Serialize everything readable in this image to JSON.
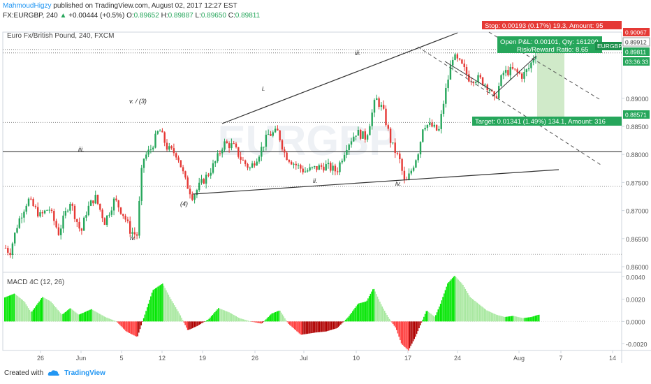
{
  "header": {
    "author": "MahmoudHigzy",
    "published_text": " published on TradingView.com, August 02, 2017 12:27 EST",
    "symbol": "FX:EURGBP, 240",
    "arrow": "▲",
    "change": "+0.00444 (+0.5%)",
    "last": "0.89811",
    "o_label": "O:",
    "o_val": "0.89652",
    "h_label": "H:",
    "h_val": "0.89887",
    "l_label": "L:",
    "l_val": "0.89650",
    "c_label": "C:",
    "c_val": "0.89811"
  },
  "pane_title": "Euro Fx/British Pound, 240, FXCM",
  "watermark": "EURGBP",
  "position_box": {
    "stop_text": "Stop: 0.00193 (0.17%) 19.3, Amount: 95",
    "pnl_text": "Open P&L: 0.00101, Qty: 161200",
    "rr_text": "Risk/Reward Ratio: 8.65",
    "target_text": "Target: 0.01341 (1.49%) 134.1, Amount: 316",
    "symbol_tag": "EURGBP"
  },
  "price_tags": {
    "stop": "0.90067",
    "entry": "0.89912",
    "current": "0.89811",
    "countdown": "03:36:33",
    "target": "0.88571"
  },
  "wave_labels": [
    "v. / (3)",
    "i.",
    "iii.",
    "iii.",
    "(4)",
    "iv.",
    "ii.",
    "iv."
  ],
  "macd_title": "MACD 4C (12, 26)",
  "footer": {
    "created_with": "Created with",
    "brand": "TradingView"
  },
  "colors": {
    "bull": "#26a65b",
    "bear": "#e53935",
    "macd_pos_hi": "#00e600",
    "macd_pos_lo": "#a8e8a0",
    "macd_neg_hi": "#ff3b3b",
    "macd_neg_lo": "#b00000",
    "target_zone": "#c8e6c0"
  },
  "chart_data": {
    "type": "candlestick",
    "timeframe": "240",
    "y_ticks": [
      0.86,
      0.865,
      0.87,
      0.875,
      0.88,
      0.885,
      0.89
    ],
    "y_tick_labels": [
      "0.86000",
      "0.86500",
      "0.87000",
      "0.87500",
      "0.88000",
      "0.88500",
      "0.89000"
    ],
    "ylim": [
      0.859,
      0.9018
    ],
    "x_tick_labels": [
      "26",
      "Jun",
      "5",
      "12",
      "19",
      "26",
      "Jul",
      "10",
      "17",
      "24",
      "Aug",
      "7",
      "14"
    ],
    "close_path": [
      [
        0,
        0.8645
      ],
      [
        14,
        0.8625
      ],
      [
        26,
        0.868
      ],
      [
        40,
        0.872
      ],
      [
        58,
        0.869
      ],
      [
        70,
        0.8705
      ],
      [
        84,
        0.866
      ],
      [
        100,
        0.8718
      ],
      [
        116,
        0.866
      ],
      [
        124,
        0.87
      ],
      [
        136,
        0.8725
      ],
      [
        150,
        0.868
      ],
      [
        164,
        0.872
      ],
      [
        178,
        0.869
      ],
      [
        186,
        0.8665
      ],
      [
        196,
        0.8655
      ],
      [
        204,
        0.879
      ],
      [
        216,
        0.881
      ],
      [
        228,
        0.8845
      ],
      [
        240,
        0.881
      ],
      [
        254,
        0.88
      ],
      [
        266,
        0.875
      ],
      [
        276,
        0.8725
      ],
      [
        286,
        0.8745
      ],
      [
        298,
        0.8765
      ],
      [
        310,
        0.879
      ],
      [
        320,
        0.882
      ],
      [
        334,
        0.8815
      ],
      [
        346,
        0.879
      ],
      [
        358,
        0.8775
      ],
      [
        370,
        0.88
      ],
      [
        384,
        0.8835
      ],
      [
        398,
        0.884
      ],
      [
        408,
        0.88
      ],
      [
        420,
        0.8785
      ],
      [
        436,
        0.877
      ],
      [
        450,
        0.8775
      ],
      [
        466,
        0.878
      ],
      [
        482,
        0.877
      ],
      [
        496,
        0.8815
      ],
      [
        510,
        0.884
      ],
      [
        524,
        0.883
      ],
      [
        538,
        0.89
      ],
      [
        548,
        0.888
      ],
      [
        560,
        0.882
      ],
      [
        572,
        0.879
      ],
      [
        580,
        0.8745
      ],
      [
        590,
        0.8775
      ],
      [
        600,
        0.881
      ],
      [
        606,
        0.8855
      ],
      [
        618,
        0.885
      ],
      [
        628,
        0.884
      ],
      [
        636,
        0.89
      ],
      [
        648,
        0.8975
      ],
      [
        660,
        0.896
      ],
      [
        672,
        0.8935
      ],
      [
        686,
        0.8935
      ],
      [
        700,
        0.892
      ],
      [
        708,
        0.8895
      ],
      [
        720,
        0.8945
      ],
      [
        734,
        0.895
      ],
      [
        748,
        0.894
      ],
      [
        758,
        0.8955
      ],
      [
        766,
        0.8981
      ]
    ],
    "position": {
      "entry": 0.89912,
      "stop": 0.90067,
      "target": 0.88571,
      "risk_reward": 8.65
    },
    "horizontal_levels": [
      0.8987,
      0.8981,
      0.8857,
      0.8805,
      0.8743,
      0.8622
    ],
    "macd": {
      "title": "MACD 4C (12, 26)",
      "y_ticks": [
        -0.002,
        0.0,
        0.002,
        0.004
      ],
      "y_tick_labels": [
        "-0.0020",
        "0.0000",
        "0.0020",
        "0.0040"
      ],
      "ylim": [
        -0.0026,
        0.0044
      ],
      "histogram_path": [
        [
          0,
          0.002
        ],
        [
          20,
          0.0025
        ],
        [
          34,
          0.0018
        ],
        [
          44,
          0.0008
        ],
        [
          60,
          0.0022
        ],
        [
          72,
          0.0018
        ],
        [
          88,
          0.0006
        ],
        [
          100,
          0.0012
        ],
        [
          112,
          0.0006
        ],
        [
          130,
          0.0011
        ],
        [
          150,
          0.0004
        ],
        [
          166,
          0.0
        ],
        [
          180,
          -0.0009
        ],
        [
          196,
          -0.0014
        ],
        [
          206,
          0.0005
        ],
        [
          218,
          0.0028
        ],
        [
          232,
          0.0034
        ],
        [
          244,
          0.002
        ],
        [
          258,
          0.0005
        ],
        [
          268,
          -0.0008
        ],
        [
          282,
          -0.0004
        ],
        [
          298,
          0.0002
        ],
        [
          312,
          0.0012
        ],
        [
          328,
          0.0008
        ],
        [
          342,
          0.0003
        ],
        [
          358,
          0.0
        ],
        [
          374,
          -0.0002
        ],
        [
          388,
          0.0007
        ],
        [
          400,
          0.001
        ],
        [
          412,
          -0.0002
        ],
        [
          430,
          -0.0012
        ],
        [
          450,
          -0.001
        ],
        [
          466,
          -0.0009
        ],
        [
          482,
          -0.0006
        ],
        [
          498,
          0.0004
        ],
        [
          512,
          0.0016
        ],
        [
          524,
          0.0018
        ],
        [
          534,
          0.003
        ],
        [
          546,
          0.0014
        ],
        [
          556,
          0.0003
        ],
        [
          566,
          -0.0006
        ],
        [
          574,
          -0.002
        ],
        [
          584,
          -0.0026
        ],
        [
          594,
          -0.0014
        ],
        [
          602,
          -0.0002
        ],
        [
          610,
          0.001
        ],
        [
          622,
          0.0004
        ],
        [
          630,
          0.0016
        ],
        [
          640,
          0.0034
        ],
        [
          650,
          0.0041
        ],
        [
          662,
          0.0033
        ],
        [
          672,
          0.0022
        ],
        [
          684,
          0.0016
        ],
        [
          696,
          0.001
        ],
        [
          710,
          0.0006
        ],
        [
          722,
          0.0004
        ],
        [
          734,
          0.0005
        ],
        [
          748,
          0.0003
        ],
        [
          760,
          0.0004
        ],
        [
          770,
          0.0006
        ]
      ]
    }
  }
}
